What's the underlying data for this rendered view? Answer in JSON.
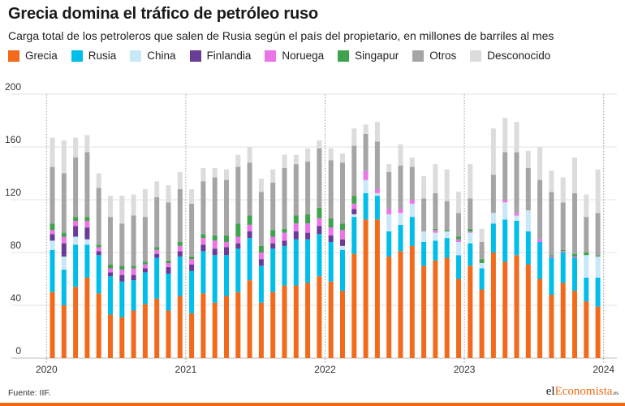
{
  "header": {
    "title": "Grecia domina el tráfico de petróleo ruso",
    "subtitle": "Carga total de los petroleros que salen de Rusia según el país del propietario, en millones de barriles al mes"
  },
  "footer": {
    "source": "Fuente: IIF.",
    "brand_prefix": "el",
    "brand_accent": "Economista",
    "brand_suffix": ".es"
  },
  "chart_data": {
    "type": "bar",
    "stacked": true,
    "ylim": [
      0,
      200
    ],
    "yticks": [
      0,
      40,
      80,
      120,
      160,
      200
    ],
    "year_labels": [
      "2020",
      "2021",
      "2022",
      "2023",
      "2024"
    ],
    "year_positions": [
      0,
      12,
      24,
      36,
      48
    ],
    "grid": true,
    "legend_position": "top",
    "series": [
      {
        "name": "Grecia",
        "color": "#f26a1b",
        "values": [
          50,
          40,
          54,
          61,
          49,
          33,
          31,
          36,
          41,
          45,
          36,
          47,
          34,
          49,
          42,
          47,
          50,
          59,
          42,
          50,
          55,
          55,
          57,
          62,
          58,
          51,
          79,
          105,
          105,
          77,
          81,
          85,
          70,
          74,
          76,
          60,
          70,
          52,
          80,
          73,
          78,
          71,
          60,
          48,
          57,
          51,
          43,
          39
        ]
      },
      {
        "name": "Rusia",
        "color": "#00bde9",
        "values": [
          32,
          27,
          32,
          25,
          29,
          29,
          27,
          23,
          24,
          31,
          28,
          30,
          32,
          32,
          36,
          31,
          33,
          32,
          28,
          33,
          30,
          35,
          33,
          32,
          30,
          31,
          28,
          20,
          18,
          19,
          20,
          22,
          18,
          15,
          15,
          18,
          17,
          16,
          22,
          32,
          26,
          25,
          28,
          28,
          23,
          25,
          18,
          22
        ]
      },
      {
        "name": "China",
        "color": "#c8e8f7",
        "values": [
          7,
          10,
          6,
          4,
          0,
          0,
          0,
          0,
          0,
          0,
          0,
          0,
          0,
          0,
          0,
          0,
          0,
          0,
          0,
          0,
          0,
          0,
          0,
          0,
          0,
          3,
          2,
          10,
          2,
          13,
          9,
          10,
          8,
          6,
          5,
          10,
          8,
          4,
          8,
          13,
          4,
          16,
          0,
          0,
          0,
          0,
          17,
          16
        ]
      },
      {
        "name": "Finlandia",
        "color": "#6a3c96",
        "values": [
          5,
          10,
          8,
          9,
          3,
          3,
          5,
          4,
          3,
          3,
          5,
          4,
          5,
          5,
          5,
          6,
          4,
          5,
          5,
          4,
          4,
          6,
          5,
          6,
          5,
          5,
          4,
          0,
          0,
          0,
          0,
          0,
          0,
          0,
          0,
          0,
          0,
          0,
          0,
          0,
          0,
          0,
          0,
          0,
          0,
          0,
          0,
          0
        ]
      },
      {
        "name": "Noruega",
        "color": "#ec74e9",
        "values": [
          3,
          5,
          4,
          5,
          3,
          3,
          4,
          5,
          3,
          3,
          3,
          4,
          4,
          5,
          6,
          4,
          5,
          5,
          5,
          5,
          6,
          6,
          7,
          6,
          6,
          7,
          4,
          7,
          3,
          4,
          3,
          3,
          0,
          2,
          0,
          2,
          1,
          0,
          0,
          2,
          2,
          0,
          2,
          1,
          1,
          1,
          0,
          0
        ]
      },
      {
        "name": "Singapur",
        "color": "#3fa34d",
        "values": [
          5,
          3,
          3,
          3,
          2,
          3,
          3,
          2,
          2,
          2,
          2,
          3,
          2,
          3,
          4,
          5,
          10,
          7,
          5,
          5,
          3,
          6,
          7,
          8,
          7,
          5,
          6,
          0,
          0,
          0,
          0,
          0,
          0,
          1,
          1,
          2,
          2,
          3,
          0,
          0,
          0,
          0,
          0,
          1,
          1,
          2,
          2,
          1
        ]
      },
      {
        "name": "Otros",
        "color": "#a5a5a5",
        "values": [
          43,
          45,
          45,
          49,
          43,
          36,
          32,
          38,
          34,
          38,
          44,
          40,
          40,
          40,
          44,
          42,
          43,
          40,
          41,
          36,
          46,
          39,
          40,
          45,
          44,
          46,
          38,
          28,
          36,
          28,
          33,
          25,
          25,
          27,
          22,
          18,
          23,
          13,
          29,
          36,
          46,
          32,
          45,
          48,
          36,
          46,
          27,
          32
        ]
      },
      {
        "name": "Desconocido",
        "color": "#dcdcdc",
        "values": [
          22,
          25,
          15,
          13,
          11,
          16,
          21,
          16,
          21,
          12,
          13,
          13,
          11,
          10,
          7,
          8,
          9,
          12,
          10,
          10,
          10,
          7,
          10,
          6,
          9,
          7,
          13,
          7,
          15,
          6,
          16,
          7,
          17,
          22,
          24,
          16,
          26,
          10,
          35,
          26,
          23,
          13,
          25,
          16,
          19,
          27,
          17,
          33
        ]
      }
    ]
  }
}
